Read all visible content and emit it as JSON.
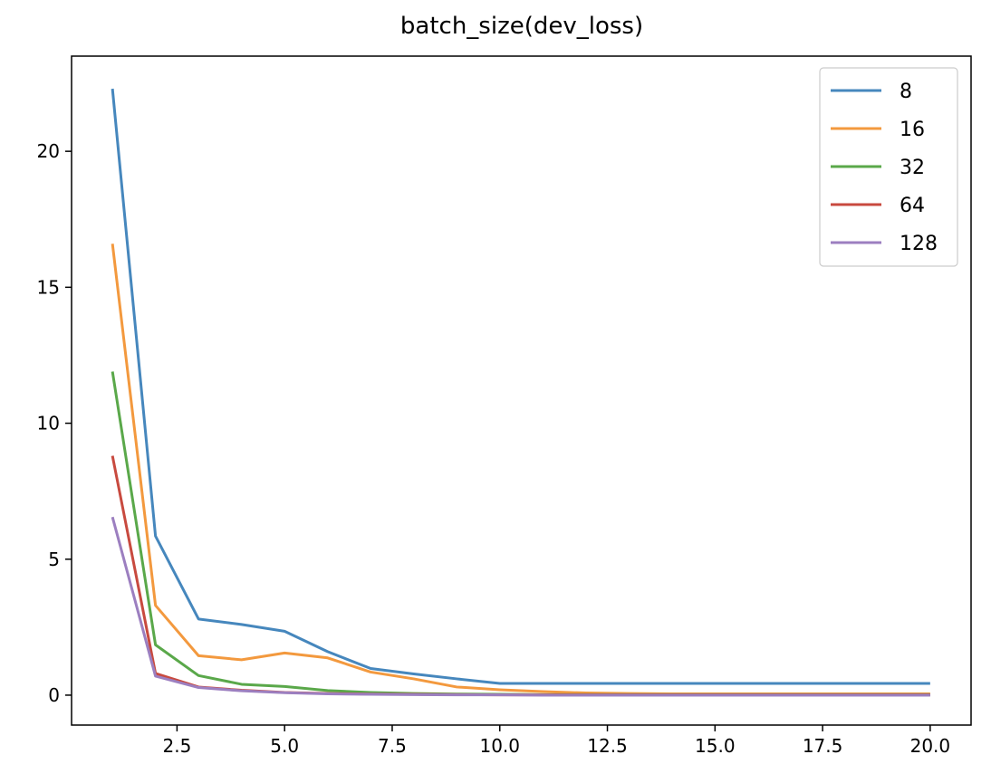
{
  "chart_data": {
    "type": "line",
    "title": "batch_size(dev_loss)",
    "xlabel": "",
    "ylabel": "",
    "xlim": [
      0.05,
      20.95
    ],
    "ylim": [
      -1.1,
      23.5
    ],
    "x_ticks": [
      2.5,
      5.0,
      7.5,
      10.0,
      12.5,
      15.0,
      17.5,
      20.0
    ],
    "x_tick_labels": [
      "2.5",
      "5.0",
      "7.5",
      "10.0",
      "12.5",
      "15.0",
      "17.5",
      "20.0"
    ],
    "y_ticks": [
      0,
      5,
      10,
      15,
      20
    ],
    "y_tick_labels": [
      "0",
      "5",
      "10",
      "15",
      "20"
    ],
    "grid": false,
    "legend_position": "top-right",
    "x": [
      1,
      2,
      3,
      4,
      5,
      6,
      7,
      8,
      9,
      10,
      11,
      12,
      13,
      14,
      15,
      16,
      17,
      18,
      19,
      20
    ],
    "series": [
      {
        "name": "8",
        "color": "#4687bd",
        "values": [
          22.3,
          5.85,
          2.8,
          2.6,
          2.35,
          1.6,
          0.98,
          0.78,
          0.6,
          0.43,
          0.43,
          0.43,
          0.43,
          0.43,
          0.43,
          0.43,
          0.43,
          0.43,
          0.43,
          0.43
        ]
      },
      {
        "name": "16",
        "color": "#f3993e",
        "values": [
          16.6,
          3.3,
          1.45,
          1.3,
          1.55,
          1.37,
          0.85,
          0.6,
          0.3,
          0.2,
          0.13,
          0.08,
          0.06,
          0.05,
          0.05,
          0.05,
          0.05,
          0.05,
          0.05,
          0.05
        ]
      },
      {
        "name": "32",
        "color": "#5aa84a",
        "values": [
          11.9,
          1.85,
          0.72,
          0.4,
          0.32,
          0.17,
          0.1,
          0.06,
          0.04,
          0.03,
          0.02,
          0.02,
          0.02,
          0.02,
          0.02,
          0.02,
          0.02,
          0.02,
          0.02,
          0.02
        ]
      },
      {
        "name": "64",
        "color": "#c84a3f",
        "values": [
          8.8,
          0.8,
          0.3,
          0.18,
          0.1,
          0.06,
          0.04,
          0.03,
          0.02,
          0.01,
          0.01,
          0.01,
          0.01,
          0.01,
          0.01,
          0.01,
          0.01,
          0.01,
          0.01,
          0.01
        ]
      },
      {
        "name": "128",
        "color": "#9c7fc0",
        "values": [
          6.55,
          0.7,
          0.28,
          0.16,
          0.09,
          0.05,
          0.03,
          0.02,
          0.01,
          0.01,
          0.0,
          0.0,
          0.0,
          0.0,
          0.0,
          0.0,
          0.0,
          0.0,
          0.0,
          0.0
        ]
      }
    ]
  }
}
